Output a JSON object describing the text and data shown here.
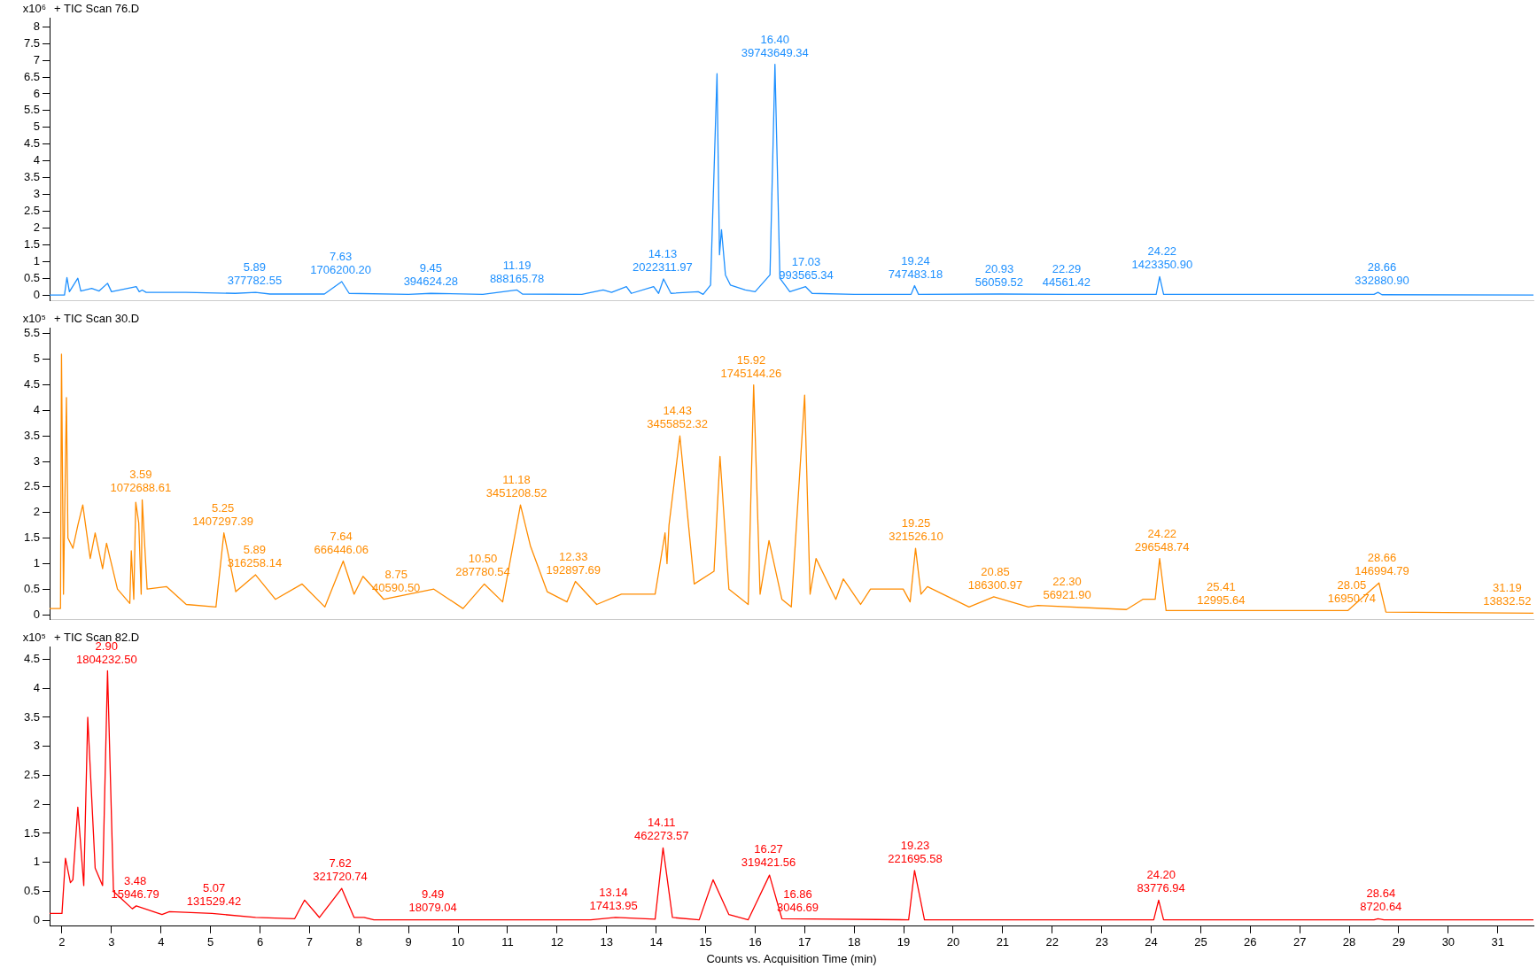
{
  "chart_data": [
    {
      "type": "line",
      "title": "+ TIC Scan 76.D",
      "ylabel": "x10⁶",
      "color": "#1e90ff",
      "tick_labels": "y",
      "grid": false,
      "legend": false,
      "xlim": [
        1.75,
        31.72
      ],
      "ylim": [
        -0.16,
        8.27
      ],
      "yticks": [
        0,
        0.5,
        1,
        1.5,
        2,
        2.5,
        3,
        3.5,
        4,
        4.5,
        5,
        5.5,
        6,
        6.5,
        7,
        7.5,
        8
      ],
      "x": [
        1.75,
        2.05,
        2.1,
        2.15,
        2.32,
        2.38,
        2.6,
        2.75,
        2.92,
        3.0,
        3.5,
        3.56,
        3.62,
        3.7,
        4.5,
        5.5,
        5.91,
        6.2,
        7.3,
        7.65,
        7.8,
        9.0,
        9.45,
        10.5,
        11.19,
        11.3,
        12.5,
        12.93,
        13.1,
        13.4,
        13.5,
        13.95,
        14.05,
        14.15,
        14.3,
        14.85,
        14.95,
        15.1,
        15.23,
        15.28,
        15.32,
        15.4,
        15.5,
        15.8,
        16.0,
        16.3,
        16.4,
        16.5,
        16.7,
        17.02,
        17.15,
        18.0,
        19.15,
        19.22,
        19.3,
        20.93,
        22.29,
        24.1,
        24.17,
        24.25,
        28.5,
        28.58,
        28.66,
        31.72
      ],
      "values": [
        0,
        0,
        0.52,
        0.1,
        0.5,
        0.12,
        0.2,
        0.12,
        0.35,
        0.1,
        0.25,
        0.1,
        0.15,
        0.08,
        0.08,
        0.05,
        0.08,
        0.03,
        0.03,
        0.4,
        0.05,
        0.02,
        0.05,
        0.02,
        0.15,
        0.03,
        0.02,
        0.15,
        0.08,
        0.25,
        0.05,
        0.25,
        0.05,
        0.48,
        0.05,
        0.1,
        0.02,
        0.3,
        6.6,
        1.2,
        1.95,
        0.6,
        0.3,
        0.15,
        0.1,
        0.6,
        6.88,
        0.5,
        0.1,
        0.25,
        0.05,
        0.02,
        0.02,
        0.28,
        0.02,
        0.03,
        0.02,
        0.02,
        0.55,
        0.02,
        0.02,
        0.08,
        0.01,
        0
      ],
      "annotations": [
        {
          "text": "5.89\n377782.55",
          "x": 5.89,
          "y": 0.08
        },
        {
          "text": "7.63\n1706200.20",
          "x": 7.63,
          "y": 0.4
        },
        {
          "text": "9.45\n394624.28",
          "x": 9.45,
          "y": 0.05
        },
        {
          "text": "11.19\n888165.78",
          "x": 11.19,
          "y": 0.15
        },
        {
          "text": "14.13\n2022311.97",
          "x": 14.13,
          "y": 0.48
        },
        {
          "text": "16.40\n39743649.34",
          "x": 16.4,
          "y": 6.88
        },
        {
          "text": "17.03\n993565.34",
          "x": 17.03,
          "y": 0.25
        },
        {
          "text": "19.24\n747483.18",
          "x": 19.24,
          "y": 0.28
        },
        {
          "text": "20.93\n56059.52",
          "x": 20.93,
          "y": 0.03
        },
        {
          "text": "22.29\n44561.42",
          "x": 22.29,
          "y": 0.02
        },
        {
          "text": "24.22\n1423350.90",
          "x": 24.22,
          "y": 0.55
        },
        {
          "text": "28.66\n332880.90",
          "x": 28.66,
          "y": 0.08
        }
      ]
    },
    {
      "type": "line",
      "title": "+ TIC Scan 30.D",
      "ylabel": "x10⁵",
      "color": "#ff8c00",
      "tick_labels": "y",
      "grid": false,
      "legend": false,
      "xlim": [
        1.75,
        31.72
      ],
      "ylim": [
        -0.09,
        5.62
      ],
      "yticks": [
        0,
        0.5,
        1,
        1.5,
        2,
        2.5,
        3,
        3.5,
        4,
        4.5,
        5,
        5.5
      ],
      "x": [
        1.75,
        1.97,
        1.99,
        2.03,
        2.09,
        2.12,
        2.22,
        2.32,
        2.42,
        2.57,
        2.67,
        2.82,
        2.9,
        3.12,
        3.37,
        3.4,
        3.45,
        3.49,
        3.55,
        3.6,
        3.62,
        3.72,
        4.11,
        4.51,
        5.11,
        5.27,
        5.51,
        5.91,
        6.31,
        6.85,
        7.31,
        7.68,
        7.9,
        8.08,
        8.5,
        9.51,
        10.1,
        10.53,
        10.9,
        11.26,
        11.46,
        11.8,
        12.2,
        12.37,
        12.8,
        13.3,
        13.98,
        14.18,
        14.22,
        14.26,
        14.48,
        14.77,
        15.17,
        15.29,
        15.47,
        15.86,
        15.97,
        16.1,
        16.28,
        16.54,
        16.73,
        17.0,
        17.11,
        17.23,
        17.63,
        17.78,
        18.13,
        18.33,
        18.99,
        19.13,
        19.24,
        19.35,
        19.48,
        19.58,
        20.32,
        20.82,
        21.52,
        21.71,
        23.5,
        23.83,
        24.08,
        24.17,
        24.3,
        27.97,
        28.6,
        28.74,
        31.72
      ],
      "values": [
        0.12,
        0.12,
        5.1,
        0.4,
        4.25,
        1.5,
        1.3,
        1.75,
        2.15,
        1.1,
        1.6,
        0.9,
        1.4,
        0.5,
        0.22,
        1.25,
        0.3,
        2.2,
        1.8,
        0.4,
        2.25,
        0.5,
        0.55,
        0.2,
        0.15,
        1.6,
        0.45,
        0.78,
        0.3,
        0.6,
        0.15,
        1.05,
        0.4,
        0.75,
        0.3,
        0.5,
        0.12,
        0.6,
        0.25,
        2.15,
        1.35,
        0.45,
        0.25,
        0.65,
        0.2,
        0.4,
        0.4,
        1.6,
        1.0,
        1.75,
        3.5,
        0.6,
        0.85,
        3.1,
        0.5,
        0.2,
        4.5,
        0.4,
        1.45,
        0.3,
        0.15,
        4.3,
        0.4,
        1.1,
        0.3,
        0.7,
        0.2,
        0.5,
        0.5,
        0.25,
        1.3,
        0.4,
        0.55,
        0.5,
        0.15,
        0.35,
        0.15,
        0.18,
        0.1,
        0.3,
        0.3,
        1.1,
        0.08,
        0.08,
        0.62,
        0.05,
        0.03
      ],
      "annotations": [
        {
          "text": "3.59\n1072688.61",
          "x": 3.59,
          "y": 2.25
        },
        {
          "text": "5.25\n1407297.39",
          "x": 5.25,
          "y": 1.6
        },
        {
          "text": "5.89\n316258.14",
          "x": 5.89,
          "y": 0.78
        },
        {
          "text": "7.64\n666446.06",
          "x": 7.64,
          "y": 1.05
        },
        {
          "text": "8.75\n40590.50",
          "x": 8.75,
          "y": 0.3
        },
        {
          "text": "10.50\n287780.54",
          "x": 10.5,
          "y": 0.6
        },
        {
          "text": "11.18\n3451208.52",
          "x": 11.18,
          "y": 2.15
        },
        {
          "text": "12.33\n192897.69",
          "x": 12.33,
          "y": 0.65
        },
        {
          "text": "14.43\n3455852.32",
          "x": 14.43,
          "y": 3.5
        },
        {
          "text": "15.92\n1745144.26",
          "x": 15.92,
          "y": 4.5
        },
        {
          "text": "19.25\n321526.10",
          "x": 19.25,
          "y": 1.3
        },
        {
          "text": "20.85\n186300.97",
          "x": 20.85,
          "y": 0.35
        },
        {
          "text": "22.30\n56921.90",
          "x": 22.3,
          "y": 0.15
        },
        {
          "text": "24.22\n296548.74",
          "x": 24.22,
          "y": 1.1
        },
        {
          "text": "25.41\n12995.64",
          "x": 25.41,
          "y": 0.05
        },
        {
          "text": "28.05\n16950.74",
          "x": 28.05,
          "y": 0.08
        },
        {
          "text": "28.66\n146994.79",
          "x": 28.66,
          "y": 0.62
        },
        {
          "text": "31.19\n13832.52",
          "x": 31.19,
          "y": 0.03
        }
      ]
    },
    {
      "type": "line",
      "title": "+ TIC Scan 82.D",
      "ylabel": "x10⁵",
      "xlabel": "Counts vs. Acquisition Time (min)",
      "color": "#ff0000",
      "grid": false,
      "legend": false,
      "xlim": [
        1.75,
        31.72
      ],
      "ylim": [
        -0.1,
        4.72
      ],
      "yticks": [
        0,
        0.5,
        1,
        1.5,
        2,
        2.5,
        3,
        3.5,
        4,
        4.5
      ],
      "xticks": [
        2,
        3,
        4,
        5,
        6,
        7,
        8,
        9,
        10,
        11,
        12,
        13,
        14,
        15,
        16,
        17,
        18,
        19,
        20,
        21,
        22,
        23,
        24,
        25,
        26,
        27,
        28,
        29,
        30,
        31
      ],
      "x": [
        1.75,
        2.0,
        2.07,
        2.17,
        2.22,
        2.32,
        2.44,
        2.52,
        2.67,
        2.82,
        2.92,
        3.04,
        3.42,
        3.5,
        4.02,
        4.17,
        5.03,
        5.91,
        6.7,
        6.9,
        7.2,
        7.65,
        7.9,
        8.1,
        8.3,
        12.68,
        13.18,
        13.98,
        14.14,
        14.33,
        14.87,
        15.15,
        15.47,
        15.86,
        16.29,
        16.54,
        19.1,
        19.22,
        19.42,
        24.05,
        24.15,
        24.25,
        28.5,
        28.58,
        28.7,
        31.72
      ],
      "values": [
        0.12,
        0.12,
        1.07,
        0.65,
        0.7,
        1.95,
        0.6,
        3.5,
        0.9,
        0.6,
        4.3,
        0.5,
        0.2,
        0.25,
        0.1,
        0.15,
        0.12,
        0.05,
        0.03,
        0.35,
        0.05,
        0.55,
        0.05,
        0.05,
        0.01,
        0.01,
        0.05,
        0.02,
        1.25,
        0.05,
        0.01,
        0.7,
        0.1,
        0.01,
        0.78,
        0.03,
        0.01,
        0.86,
        0.01,
        0.01,
        0.35,
        0.01,
        0.01,
        0.03,
        0.01,
        0.01
      ],
      "annotations": [
        {
          "text": "2.90\n1804232.50",
          "x": 2.9,
          "y": 4.3
        },
        {
          "text": "3.48\n15946.79",
          "x": 3.48,
          "y": 0.25
        },
        {
          "text": "5.07\n131529.42",
          "x": 5.07,
          "y": 0.12
        },
        {
          "text": "7.62\n321720.74",
          "x": 7.62,
          "y": 0.55
        },
        {
          "text": "9.49\n18079.04",
          "x": 9.49,
          "y": 0.02
        },
        {
          "text": "13.14\n17413.95",
          "x": 13.14,
          "y": 0.05
        },
        {
          "text": "14.11\n462273.57",
          "x": 14.11,
          "y": 1.25
        },
        {
          "text": "16.27\n319421.56",
          "x": 16.27,
          "y": 0.8
        },
        {
          "text": "16.86\n3046.69",
          "x": 16.86,
          "y": 0.02
        },
        {
          "text": "19.23\n221695.58",
          "x": 19.23,
          "y": 0.86
        },
        {
          "text": "24.20\n83776.94",
          "x": 24.2,
          "y": 0.35
        },
        {
          "text": "28.64\n8720.64",
          "x": 28.64,
          "y": 0.03
        }
      ]
    }
  ]
}
